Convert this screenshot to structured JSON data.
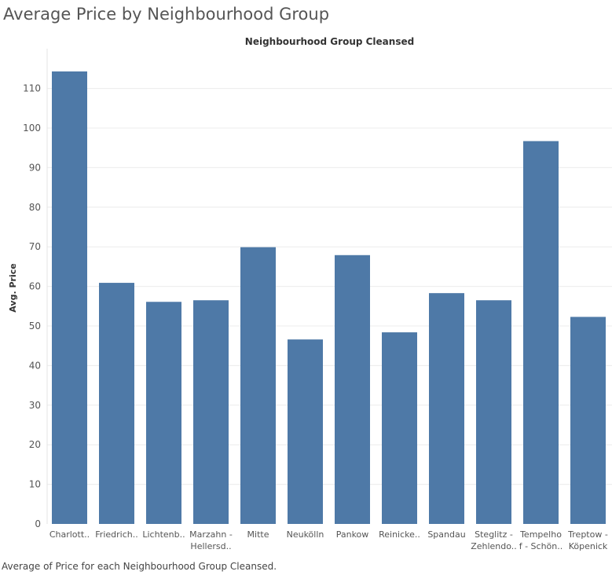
{
  "title": "Average Price by Neighbourhood Group",
  "header": "Neighbourhood Group Cleansed",
  "caption": "Average of Price for each Neighbourhood Group Cleansed.",
  "colors": {
    "bar": "#4e79a7",
    "grid": "#ececec",
    "tick_text": "#555555"
  },
  "chart_data": {
    "type": "bar",
    "title": "Average Price by Neighbourhood Group",
    "xlabel": "Neighbourhood Group Cleansed",
    "ylabel": "Avg. Price",
    "ylim": [
      0,
      117
    ],
    "yticks": [
      0,
      10,
      20,
      30,
      40,
      50,
      60,
      70,
      80,
      90,
      100,
      110
    ],
    "grid": true,
    "categories": [
      [
        "Charlott.."
      ],
      [
        "Friedrich.."
      ],
      [
        "Lichtenb.."
      ],
      [
        "Marzahn -",
        "Hellersd.."
      ],
      [
        "Mitte"
      ],
      [
        "Neukölln"
      ],
      [
        "Pankow"
      ],
      [
        "Reinicke.."
      ],
      [
        "Spandau"
      ],
      [
        "Steglitz -",
        "Zehlendo.."
      ],
      [
        "Tempelho",
        "f - Schön.."
      ],
      [
        "Treptow -",
        "Köpenick"
      ]
    ],
    "values": [
      114.3,
      60.9,
      56.1,
      56.5,
      69.9,
      46.6,
      67.9,
      48.4,
      58.3,
      56.5,
      96.7,
      52.3
    ]
  }
}
